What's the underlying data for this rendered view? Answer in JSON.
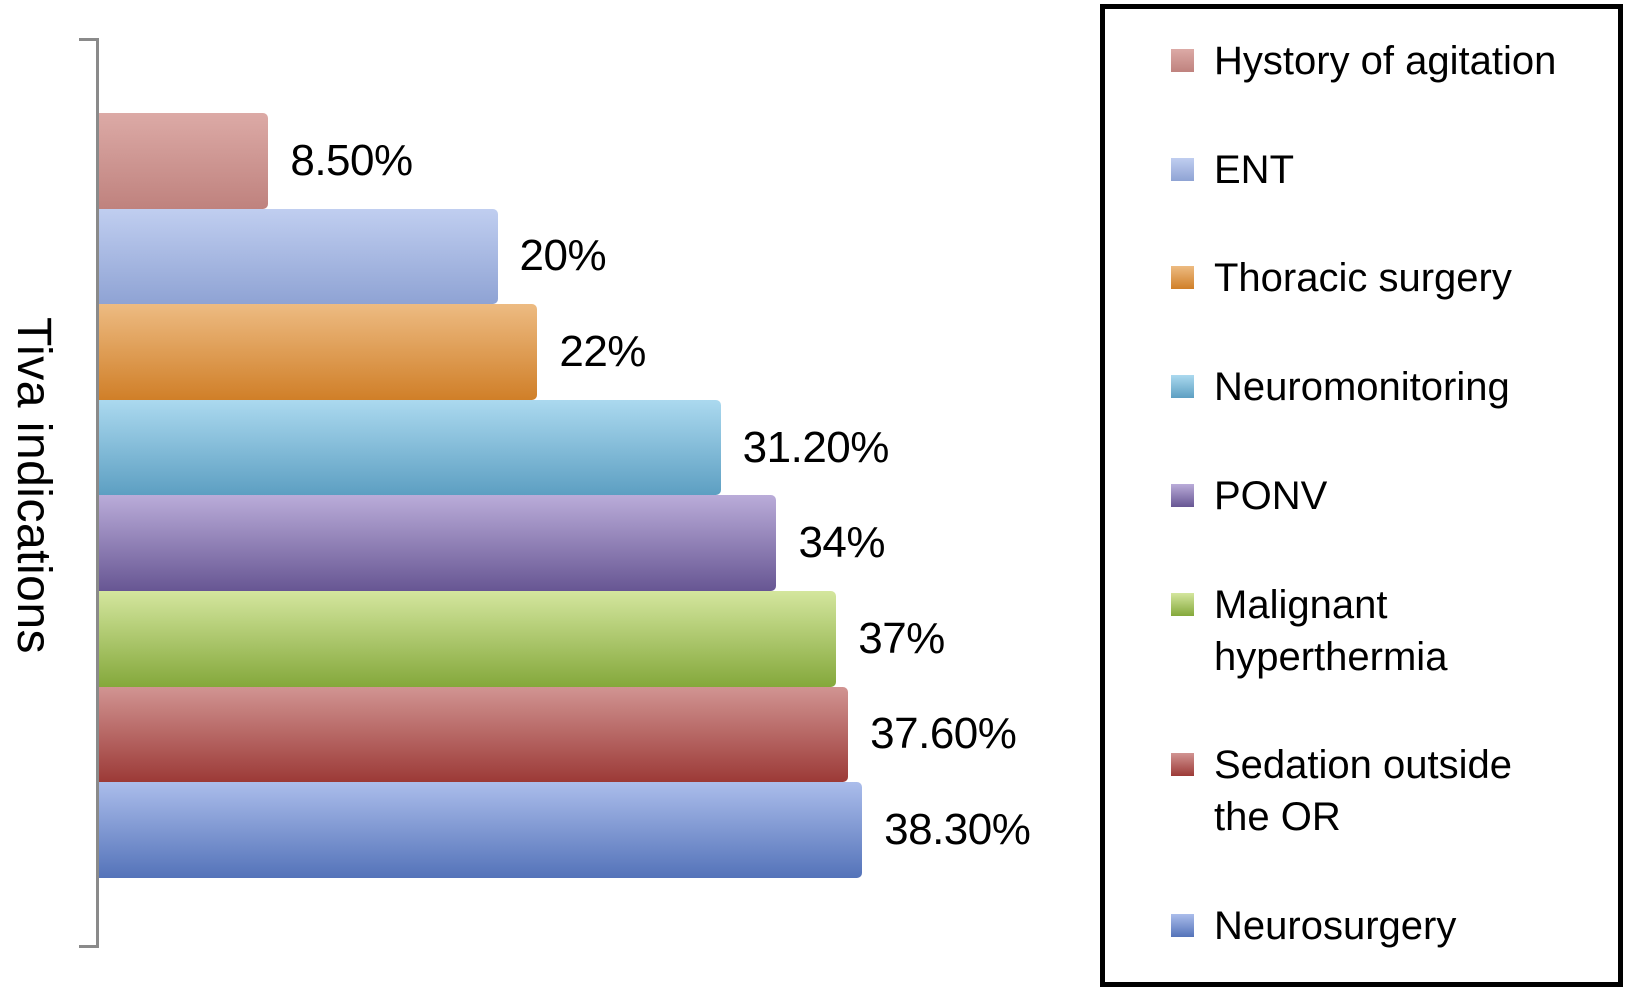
{
  "chart_data": {
    "type": "bar",
    "orientation": "horizontal",
    "title": "",
    "ylabel": "Tiva indications",
    "xlabel": "",
    "xlim": [
      0,
      40
    ],
    "grid": false,
    "legend_position": "right",
    "categories": [
      "Hystory of agitation",
      "ENT",
      "Thoracic surgery",
      "Neuromonitoring",
      "PONV",
      "Malignant hyperthermia",
      "Sedation outside the OR",
      "Neurosurgery"
    ],
    "values": [
      8.5,
      20,
      22,
      31.2,
      34,
      37,
      37.6,
      38.3
    ],
    "value_labels": [
      "8.50%",
      "20%",
      "22%",
      "31.20%",
      "34%",
      "37%",
      "37.60%",
      "38.30%"
    ],
    "series_colors": [
      {
        "top": "#dcaaa6",
        "bottom": "#bf827e"
      },
      {
        "top": "#c0cef0",
        "bottom": "#8fa3d4"
      },
      {
        "top": "#edbb82",
        "bottom": "#d07f28"
      },
      {
        "top": "#abd9ef",
        "bottom": "#5d9fc2"
      },
      {
        "top": "#baacd9",
        "bottom": "#675693"
      },
      {
        "top": "#d4e69e",
        "bottom": "#84a83b"
      },
      {
        "top": "#d19492",
        "bottom": "#9c3a37"
      },
      {
        "top": "#abbdeb",
        "bottom": "#5473b9"
      }
    ],
    "axis_line_color": "#8a8a8a",
    "legend_border_color": "#000000",
    "background_color": "#ffffff"
  }
}
